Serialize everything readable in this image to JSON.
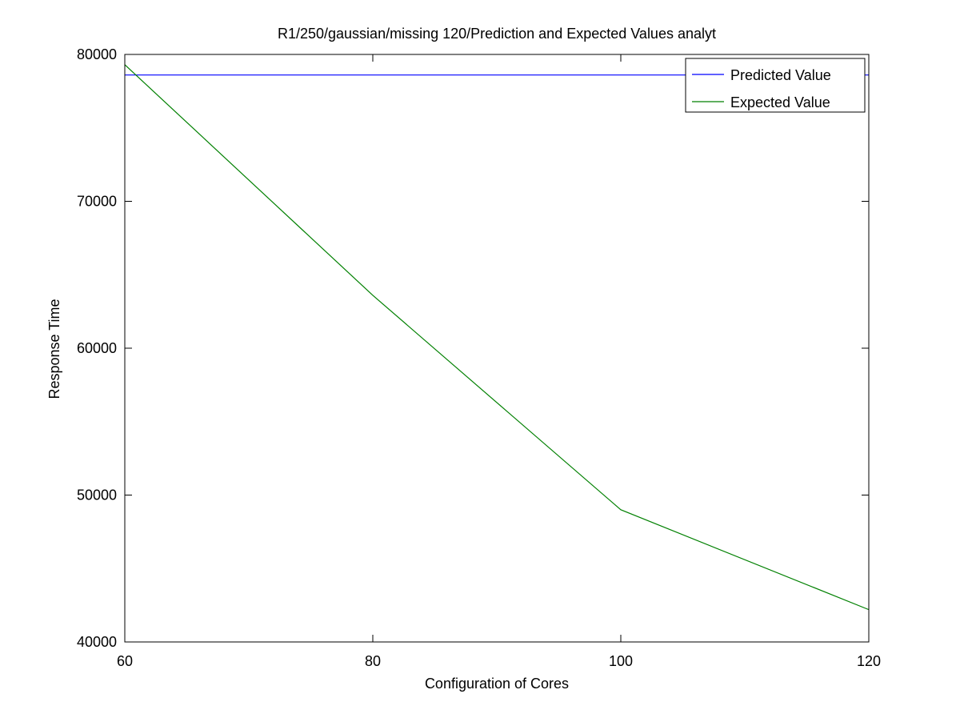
{
  "chart_data": {
    "type": "line",
    "title": "R1/250/gaussian/missing 120/Prediction and Expected Values analyt",
    "xlabel": "Configuration of Cores",
    "ylabel": "Response Time",
    "xlim": [
      60,
      120
    ],
    "ylim": [
      40000,
      80000
    ],
    "x_ticks": [
      60,
      80,
      100,
      120
    ],
    "y_ticks": [
      40000,
      50000,
      60000,
      70000,
      80000
    ],
    "grid": false,
    "legend_position": "top-right",
    "series": [
      {
        "name": "Predicted Value",
        "color": "#0000ff",
        "x": [
          60,
          120
        ],
        "y": [
          78600,
          78600
        ]
      },
      {
        "name": "Expected Value",
        "color": "#008000",
        "x": [
          60,
          80,
          100,
          120
        ],
        "y": [
          79300,
          63600,
          49000,
          42200
        ]
      }
    ]
  }
}
